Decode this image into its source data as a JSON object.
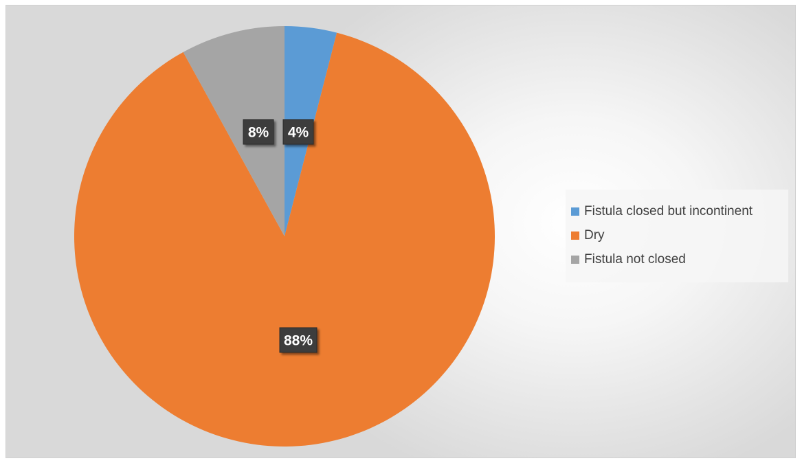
{
  "chart_data": {
    "type": "pie",
    "title": "",
    "categories": [
      "Fistula closed but incontinent",
      "Dry",
      "Fistula not closed"
    ],
    "values": [
      4,
      88,
      8
    ],
    "labels": [
      "4%",
      "88%",
      "8%"
    ],
    "colors": [
      "#5B9BD5",
      "#ED7D31",
      "#A5A5A5"
    ],
    "start_angle_deg": 0,
    "direction": "clockwise",
    "legend": "right"
  }
}
